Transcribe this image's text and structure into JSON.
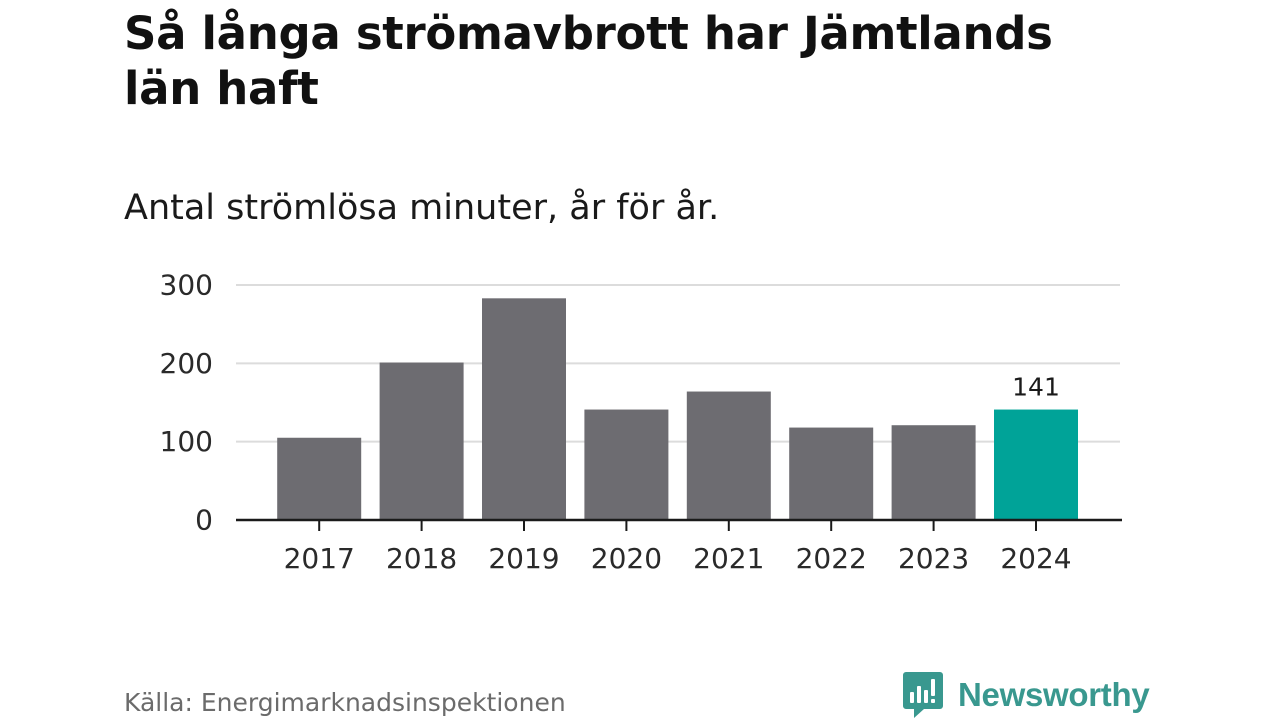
{
  "title": "Så långa strömavbrott har Jämtlands län haft",
  "subtitle": "Antal strömlösa minuter, år för år.",
  "source": "Källa: Energimarknadsinspektionen",
  "brand": {
    "name": "Newsworthy",
    "color": "#39988f"
  },
  "colors": {
    "bar": "#6d6c71",
    "highlight": "#00a398",
    "grid": "#dcdcdc",
    "axis": "#1a1a1a"
  },
  "chart_data": {
    "type": "bar",
    "title": "Så långa strömavbrott har Jämtlands län haft",
    "subtitle": "Antal strömlösa minuter, år för år.",
    "categories": [
      "2017",
      "2018",
      "2019",
      "2020",
      "2021",
      "2022",
      "2023",
      "2024"
    ],
    "values": [
      105,
      201,
      283,
      141,
      164,
      118,
      121,
      141
    ],
    "highlight_index": 7,
    "data_labels": [
      {
        "index": 7,
        "text": "141"
      }
    ],
    "yticks": [
      0,
      100,
      200,
      300
    ],
    "ylim": [
      0,
      300
    ],
    "xlabel": "",
    "ylabel": "",
    "grid": true
  }
}
